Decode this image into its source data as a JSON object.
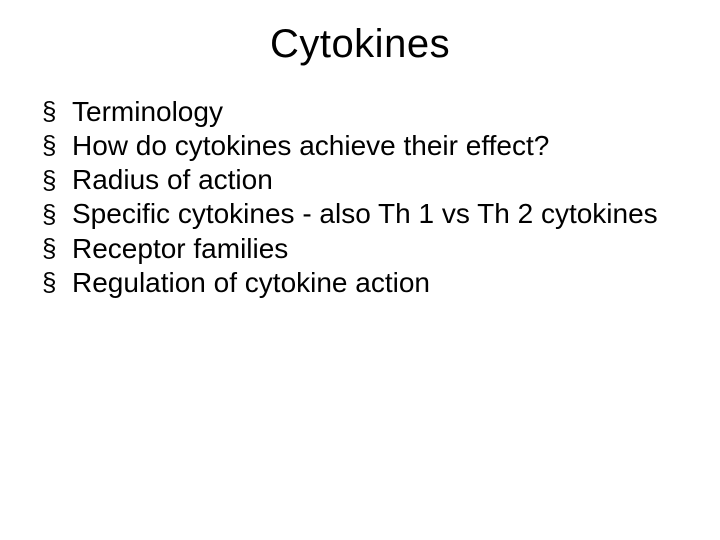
{
  "slide": {
    "title": "Cytokines",
    "title_fontsize": 40,
    "title_color": "#000000",
    "bullet_marker": "§",
    "bullet_fontsize": 28,
    "bullet_color": "#000000",
    "background_color": "#ffffff",
    "font_family": "Arial",
    "bullets": [
      "Terminology",
      "How do cytokines achieve their effect?",
      "Radius of action",
      "Specific cytokines - also Th 1 vs Th 2 cytokines",
      "Receptor families",
      "Regulation of cytokine action"
    ]
  }
}
